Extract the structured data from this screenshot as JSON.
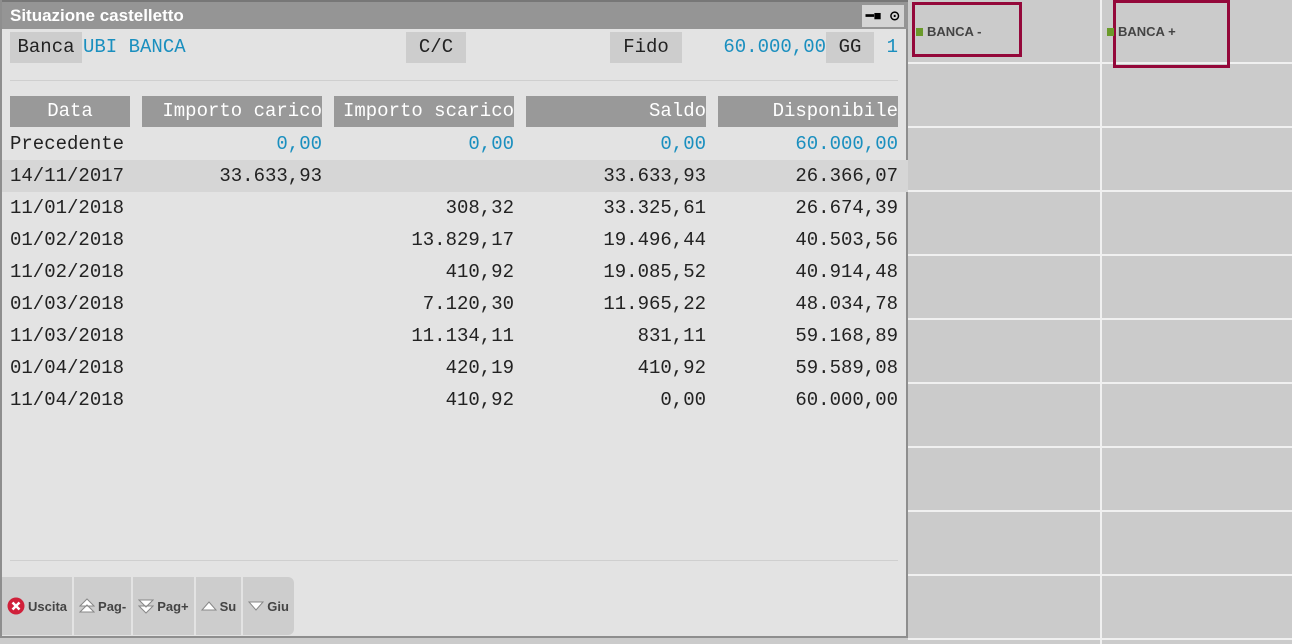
{
  "window": {
    "title": "Situazione castelletto",
    "pin_icon": "pin-icon",
    "menu_icon": "radio-icon"
  },
  "header": {
    "banca_label": "Banca",
    "banca_value": "UBI BANCA",
    "cc_label": "C/C",
    "fido_label": "Fido",
    "fido_value": "60.000,00",
    "gg_label": "GG",
    "gg_value": "1"
  },
  "table": {
    "columns": [
      "Data",
      "Importo carico",
      "Importo scarico",
      "Saldo",
      "Disponibile"
    ],
    "rows": [
      [
        "Precedente",
        "0,00",
        "0,00",
        "0,00",
        "60.000,00"
      ],
      [
        "14/11/2017",
        "33.633,93",
        "",
        "33.633,93",
        "26.366,07"
      ],
      [
        "11/01/2018",
        "",
        "308,32",
        "33.325,61",
        "26.674,39"
      ],
      [
        "01/02/2018",
        "",
        "13.829,17",
        "19.496,44",
        "40.503,56"
      ],
      [
        "11/02/2018",
        "",
        "410,92",
        "19.085,52",
        "40.914,48"
      ],
      [
        "01/03/2018",
        "",
        "7.120,30",
        "11.965,22",
        "48.034,78"
      ],
      [
        "11/03/2018",
        "",
        "11.134,11",
        "831,11",
        "59.168,89"
      ],
      [
        "01/04/2018",
        "",
        "420,19",
        "410,92",
        "59.589,08"
      ],
      [
        "11/04/2018",
        "",
        "410,92",
        "0,00",
        "60.000,00"
      ]
    ]
  },
  "footer": [
    {
      "label": "Uscita",
      "icon": "close-icon"
    },
    {
      "label": "Pag-",
      "icon": "page-up-icon"
    },
    {
      "label": "Pag+",
      "icon": "page-down-icon"
    },
    {
      "label": "Su",
      "icon": "arrow-up-icon"
    },
    {
      "label": "Giu",
      "icon": "arrow-down-icon"
    }
  ],
  "side": {
    "banca_minus": "BANCA -",
    "banca_plus": "BANCA +"
  },
  "colors": {
    "accent_blue": "#1a8fbf",
    "highlight_border": "#94083a",
    "marker_green": "#6a9a2a"
  }
}
